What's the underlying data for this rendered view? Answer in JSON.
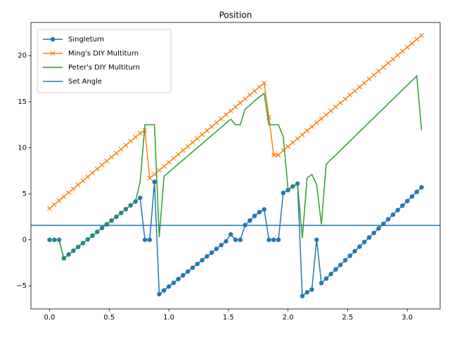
{
  "chart_data": {
    "type": "line",
    "title": "Position",
    "x": [
      0,
      0.04,
      0.08,
      0.12,
      0.16,
      0.2,
      0.24,
      0.28,
      0.32,
      0.36,
      0.4,
      0.44,
      0.48,
      0.52,
      0.56,
      0.6,
      0.64,
      0.68,
      0.72,
      0.76,
      0.8,
      0.84,
      0.88,
      0.92,
      0.96,
      1.0,
      1.04,
      1.08,
      1.12,
      1.16,
      1.2,
      1.24,
      1.28,
      1.32,
      1.36,
      1.4,
      1.44,
      1.48,
      1.52,
      1.56,
      1.6,
      1.64,
      1.68,
      1.72,
      1.76,
      1.8,
      1.84,
      1.88,
      1.92,
      1.96,
      2.0,
      2.04,
      2.08,
      2.12,
      2.16,
      2.2,
      2.24,
      2.28,
      2.32,
      2.36,
      2.4,
      2.44,
      2.48,
      2.52,
      2.56,
      2.6,
      2.64,
      2.68,
      2.72,
      2.76,
      2.8,
      2.84,
      2.88,
      2.92,
      2.96,
      3.0,
      3.04,
      3.08,
      3.12
    ],
    "series": [
      {
        "name": "Singleturn",
        "color": "#1f77b4",
        "marker": "o",
        "values": [
          0,
          0,
          0,
          -2.0,
          -1.59,
          -1.18,
          -0.77,
          -0.36,
          0.05,
          0.46,
          0.87,
          1.28,
          1.69,
          2.1,
          2.51,
          2.92,
          3.33,
          3.74,
          4.15,
          4.56,
          0,
          0,
          6.3,
          -5.9,
          -5.49,
          -5.08,
          -4.67,
          -4.26,
          -3.85,
          -3.44,
          -3.03,
          -2.62,
          -2.21,
          -1.8,
          -1.39,
          -0.98,
          -0.57,
          -0.16,
          0.6,
          0,
          0,
          1.6,
          2.1,
          2.6,
          3.0,
          3.3,
          0,
          0,
          0,
          5.1,
          5.4,
          5.8,
          6.1,
          -6.1,
          -5.7,
          -5.4,
          0,
          -4.7,
          -4.2,
          -3.71,
          -3.21,
          -2.72,
          -2.22,
          -1.73,
          -1.23,
          -0.74,
          -0.24,
          0.25,
          0.75,
          1.24,
          1.74,
          2.23,
          2.73,
          3.22,
          3.72,
          4.21,
          4.71,
          5.2,
          5.7
        ]
      },
      {
        "name": "Ming's DIY Multiturn",
        "color": "#ff7f0e",
        "marker": "x",
        "values": [
          3.4,
          3.83,
          4.26,
          4.69,
          5.12,
          5.55,
          5.98,
          6.41,
          6.84,
          7.27,
          7.7,
          8.13,
          8.56,
          8.99,
          9.42,
          9.85,
          10.28,
          10.71,
          11.14,
          11.57,
          11.9,
          6.7,
          7.13,
          7.56,
          7.99,
          8.42,
          8.85,
          9.28,
          9.71,
          10.14,
          10.57,
          11.0,
          11.43,
          11.86,
          12.29,
          12.72,
          13.15,
          13.58,
          14.01,
          14.44,
          14.87,
          15.3,
          15.73,
          16.16,
          16.59,
          17.02,
          13.3,
          9.2,
          9.2,
          9.7,
          10.13,
          10.56,
          10.99,
          11.42,
          11.86,
          12.29,
          12.72,
          13.15,
          13.58,
          14.01,
          14.44,
          14.87,
          15.3,
          15.73,
          16.17,
          16.6,
          17.03,
          17.46,
          17.89,
          18.32,
          18.75,
          19.18,
          19.61,
          20.04,
          20.48,
          20.91,
          21.34,
          21.77,
          22.2
        ]
      },
      {
        "name": "Peter's DIY Multiturn",
        "color": "#2ca02c",
        "values": [
          0,
          0,
          0,
          -2.0,
          -1.59,
          -1.18,
          -0.77,
          -0.36,
          0.05,
          0.46,
          0.87,
          1.28,
          1.69,
          2.1,
          2.51,
          2.92,
          3.33,
          3.74,
          4.15,
          6.3,
          12.5,
          12.5,
          12.5,
          0.3,
          6.9,
          7.34,
          7.79,
          8.23,
          8.67,
          9.11,
          9.56,
          10.0,
          10.44,
          10.89,
          11.33,
          11.77,
          12.21,
          12.66,
          13.1,
          12.5,
          12.5,
          14.2,
          14.6,
          15.1,
          15.5,
          15.9,
          12.5,
          12.5,
          12.5,
          11.2,
          5.5,
          5.8,
          6.0,
          0.2,
          6.7,
          7.1,
          6.0,
          1.7,
          8.2,
          8.71,
          9.21,
          9.72,
          10.22,
          10.73,
          11.23,
          11.74,
          12.24,
          12.75,
          13.25,
          13.76,
          14.26,
          14.77,
          15.27,
          15.78,
          16.28,
          16.79,
          17.29,
          17.8,
          11.9
        ]
      },
      {
        "name": "Set Angle",
        "color": "#1f77b4",
        "hline": 1.57
      }
    ],
    "xlim": [
      -0.156,
      3.276
    ],
    "ylim": [
      -7.5,
      23.6
    ],
    "xticks": [
      {
        "value": 0,
        "label": "0.0"
      },
      0.5,
      {
        "value": 1,
        "label": "1.0"
      },
      1.5,
      {
        "value": 2,
        "label": "2.0"
      },
      2.5,
      {
        "value": 3,
        "label": "3.0"
      }
    ],
    "yticks": [
      {
        "value": -5,
        "label": "−5"
      },
      0,
      5,
      10,
      15,
      20
    ],
    "legend": "upper left"
  }
}
